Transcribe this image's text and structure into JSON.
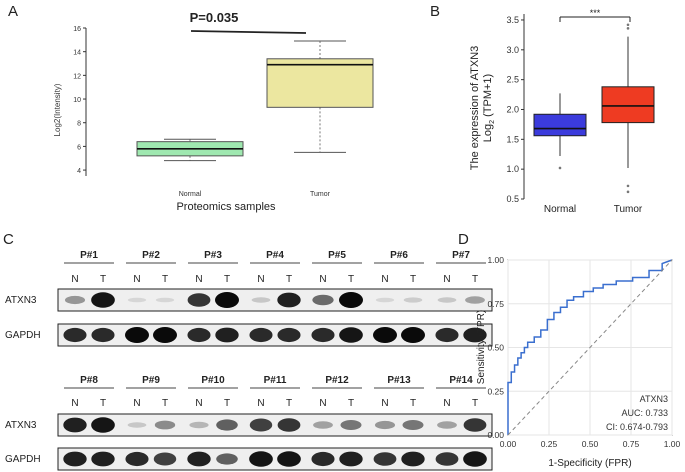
{
  "panels": {
    "A": {
      "letter": "A",
      "p_value_label": "P=0.035",
      "chart_data": {
        "type": "box",
        "title": "",
        "xlabel": "Proteomics samples",
        "ylabel": "Log2(Intensity)",
        "categories": [
          "Normal",
          "Tumor"
        ],
        "ylim": [
          3.5,
          16
        ],
        "yticks": [
          4,
          6,
          8,
          10,
          12,
          14,
          16
        ],
        "boxes": [
          {
            "name": "Normal",
            "whisker_low": 4.8,
            "q1": 5.2,
            "median": 5.8,
            "q3": 6.4,
            "whisker_high": 6.6,
            "color": "#9fe8b0"
          },
          {
            "name": "Tumor",
            "whisker_low": 5.5,
            "q1": 9.3,
            "median": 12.9,
            "q3": 13.4,
            "whisker_high": 14.9,
            "color": "#ece7a0"
          }
        ]
      }
    },
    "B": {
      "letter": "B",
      "significance_label": "***",
      "ylabel_line1": "The expression of ATXN3",
      "ylabel_line2_prefix": "Log",
      "ylabel_line2_sub": "2",
      "ylabel_line2_suffix": " (TPM+1)",
      "chart_data": {
        "type": "box",
        "title": "",
        "xlabel": "",
        "ylabel": "The expression of ATXN3 Log2 (TPM+1)",
        "categories": [
          "Normal",
          "Tumor"
        ],
        "ylim": [
          0.5,
          3.6
        ],
        "yticks": [
          0.5,
          1.0,
          1.5,
          2.0,
          2.5,
          3.0,
          3.5
        ],
        "ytick_labels": [
          "0.5",
          "1.0",
          "1.5",
          "2.0",
          "2.5",
          "3.0",
          "3.5"
        ],
        "boxes": [
          {
            "name": "Normal",
            "whisker_low": 1.22,
            "q1": 1.56,
            "median": 1.68,
            "q3": 1.92,
            "whisker_high": 2.27,
            "outliers": [
              1.02
            ],
            "color": "#3b3bdc"
          },
          {
            "name": "Tumor",
            "whisker_low": 1.02,
            "q1": 1.78,
            "median": 2.06,
            "q3": 2.38,
            "whisker_high": 3.22,
            "outliers": [
              3.42,
              3.36,
              0.72,
              0.62
            ],
            "color": "#ee3b22"
          }
        ]
      }
    },
    "C": {
      "letter": "C",
      "row1": {
        "patients": [
          "P#1",
          "P#2",
          "P#3",
          "P#4",
          "P#5",
          "P#6",
          "P#7"
        ],
        "lane_n": "N",
        "lane_t": "T",
        "blots": [
          "ATXN3",
          "GAPDH"
        ]
      },
      "row2": {
        "patients": [
          "P#8",
          "P#9",
          "P#10",
          "P#11",
          "P#12",
          "P#13",
          "P#14"
        ],
        "lane_n": "N",
        "lane_t": "T",
        "blots": [
          "ATXN3",
          "GAPDH"
        ]
      },
      "band_intensity": {
        "row1_atxn3": [
          0.35,
          0.95,
          0.05,
          0.05,
          0.8,
          1.0,
          0.12,
          0.9,
          0.55,
          1.0,
          0.05,
          0.1,
          0.12,
          0.3
        ],
        "row1_gapdh": [
          0.85,
          0.85,
          1.0,
          1.0,
          0.85,
          0.9,
          0.85,
          0.85,
          0.85,
          0.95,
          1.0,
          1.0,
          0.85,
          0.9
        ],
        "row2_atxn3": [
          0.9,
          0.95,
          0.12,
          0.4,
          0.2,
          0.6,
          0.75,
          0.8,
          0.3,
          0.5,
          0.35,
          0.5,
          0.3,
          0.8
        ],
        "row2_gapdh": [
          0.9,
          0.9,
          0.85,
          0.75,
          0.9,
          0.6,
          0.95,
          0.95,
          0.85,
          0.9,
          0.8,
          0.9,
          0.8,
          0.95
        ]
      }
    },
    "D": {
      "letter": "D",
      "legend_name": "ATXN3",
      "auc_text": "AUC: 0.733",
      "ci_text": "CI: 0.674-0.793",
      "chart_data": {
        "type": "line",
        "title": "",
        "xlabel": "1-Specificity (FPR)",
        "ylabel": "Sensitivity (TPR)",
        "xlim": [
          0,
          1
        ],
        "ylim": [
          0,
          1
        ],
        "xticks": [
          0.0,
          0.25,
          0.5,
          0.75,
          1.0
        ],
        "xtick_labels": [
          "0.00",
          "0.25",
          "0.50",
          "0.75",
          "1.00"
        ],
        "yticks": [
          0.0,
          0.25,
          0.5,
          0.75,
          1.0
        ],
        "ytick_labels": [
          "0.00",
          "0.25",
          "0.50",
          "0.75",
          "1.00"
        ],
        "series": [
          {
            "name": "ATXN3",
            "color": "#3a6fcf",
            "x": [
              0,
              0,
              0.02,
              0.02,
              0.04,
              0.04,
              0.06,
              0.06,
              0.08,
              0.08,
              0.1,
              0.1,
              0.12,
              0.12,
              0.16,
              0.16,
              0.2,
              0.2,
              0.24,
              0.24,
              0.28,
              0.28,
              0.32,
              0.32,
              0.36,
              0.36,
              0.4,
              0.4,
              0.46,
              0.46,
              0.52,
              0.52,
              0.58,
              0.58,
              0.66,
              0.66,
              0.76,
              0.76,
              0.86,
              0.86,
              0.94,
              0.94,
              1.0
            ],
            "y": [
              0,
              0.3,
              0.3,
              0.36,
              0.36,
              0.4,
              0.4,
              0.44,
              0.44,
              0.47,
              0.47,
              0.5,
              0.5,
              0.53,
              0.53,
              0.56,
              0.56,
              0.6,
              0.6,
              0.66,
              0.66,
              0.7,
              0.7,
              0.73,
              0.73,
              0.77,
              0.77,
              0.79,
              0.79,
              0.82,
              0.82,
              0.84,
              0.84,
              0.86,
              0.86,
              0.88,
              0.88,
              0.9,
              0.9,
              0.94,
              0.94,
              0.98,
              1.0
            ]
          },
          {
            "name": "chance",
            "color": "#888888",
            "dashed": true,
            "x": [
              0,
              1
            ],
            "y": [
              0,
              1
            ]
          }
        ]
      }
    }
  }
}
